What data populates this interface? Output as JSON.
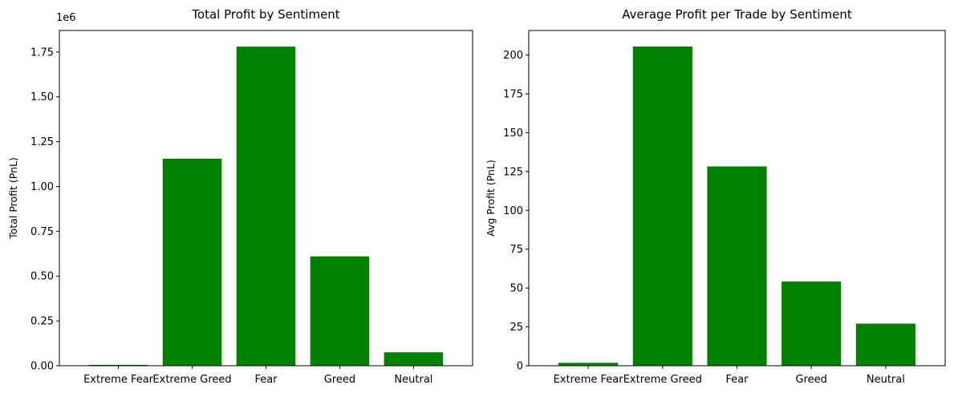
{
  "chart_data": [
    {
      "type": "bar",
      "title": "Total Profit by Sentiment",
      "xlabel": "",
      "ylabel": "Total Profit (PnL)",
      "scale_label": "1e6",
      "categories": [
        "Extreme Fear",
        "Extreme Greed",
        "Fear",
        "Greed",
        "Neutral"
      ],
      "values": [
        0.005,
        1.155,
        1.78,
        0.61,
        0.075
      ],
      "ylim": [
        0,
        1.87
      ],
      "yticks": [
        0.0,
        0.25,
        0.5,
        0.75,
        1.0,
        1.25,
        1.5,
        1.75
      ],
      "ytick_labels": [
        "0.00",
        "0.25",
        "0.50",
        "0.75",
        "1.00",
        "1.25",
        "1.50",
        "1.75"
      ],
      "bar_color": "#008000",
      "grid": false
    },
    {
      "type": "bar",
      "title": "Average Profit per Trade by Sentiment",
      "xlabel": "",
      "ylabel": "Avg Profit (PnL)",
      "scale_label": "",
      "categories": [
        "Extreme Fear",
        "Extreme Greed",
        "Fear",
        "Greed",
        "Neutral"
      ],
      "values": [
        1.9,
        205.5,
        128.3,
        54.2,
        27.1
      ],
      "ylim": [
        0,
        215.8
      ],
      "yticks": [
        0,
        25,
        50,
        75,
        100,
        125,
        150,
        175,
        200
      ],
      "ytick_labels": [
        "0",
        "25",
        "50",
        "75",
        "100",
        "125",
        "150",
        "175",
        "200"
      ],
      "bar_color": "#008000",
      "grid": false
    }
  ]
}
